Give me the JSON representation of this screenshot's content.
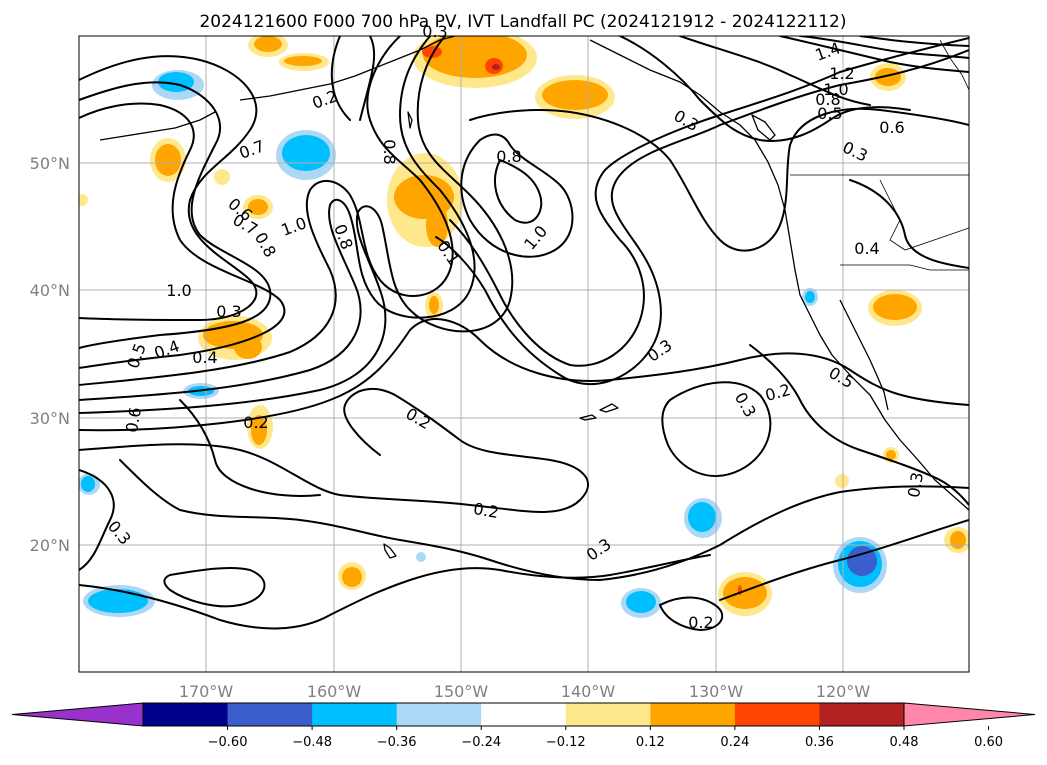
{
  "title": "2024121600 F000 700 hPa PV, IVT Landfall PC (2024121912 - 2024122112)",
  "lon_ticks": [
    "170°W",
    "160°W",
    "150°W",
    "140°W",
    "130°W",
    "120°W"
  ],
  "lat_ticks": [
    "50°N",
    "40°N",
    "30°N",
    "20°N"
  ],
  "colorbar": {
    "levels": [
      "−0.60",
      "−0.48",
      "−0.36",
      "−0.24",
      "−0.12",
      "0.12",
      "0.24",
      "0.36",
      "0.48",
      "0.60"
    ],
    "colors": [
      "#9932cc",
      "#00008b",
      "#3a5fcd",
      "#00bfff",
      "#add8f5",
      "#ffffff",
      "#ffe88c",
      "#ffa500",
      "#ff4500",
      "#b22222",
      "#ff88aa"
    ]
  },
  "contour_labels": [
    "1.4",
    "1.2",
    "1.0",
    "0.8",
    "0.5",
    "0.6",
    "0.3",
    "0.4",
    "0.5",
    "0.2",
    "0.3",
    "0.3",
    "0.7",
    "0.8",
    "0.8",
    "1.0",
    "0.8",
    "0.1",
    "1.0",
    "0.7",
    "0.6",
    "0.8",
    "1.0",
    "0.3",
    "0.4",
    "0.4",
    "0.5",
    "0.6",
    "0.2",
    "0.2",
    "0.2",
    "0.3",
    "0.3",
    "0.3",
    "0.2",
    "0.2",
    "0.3",
    "0.3"
  ],
  "colors": {
    "ocean_bg": "#ffffff",
    "contour": "#000000",
    "grid": "#b0b0b0",
    "tick_label": "#808080"
  }
}
